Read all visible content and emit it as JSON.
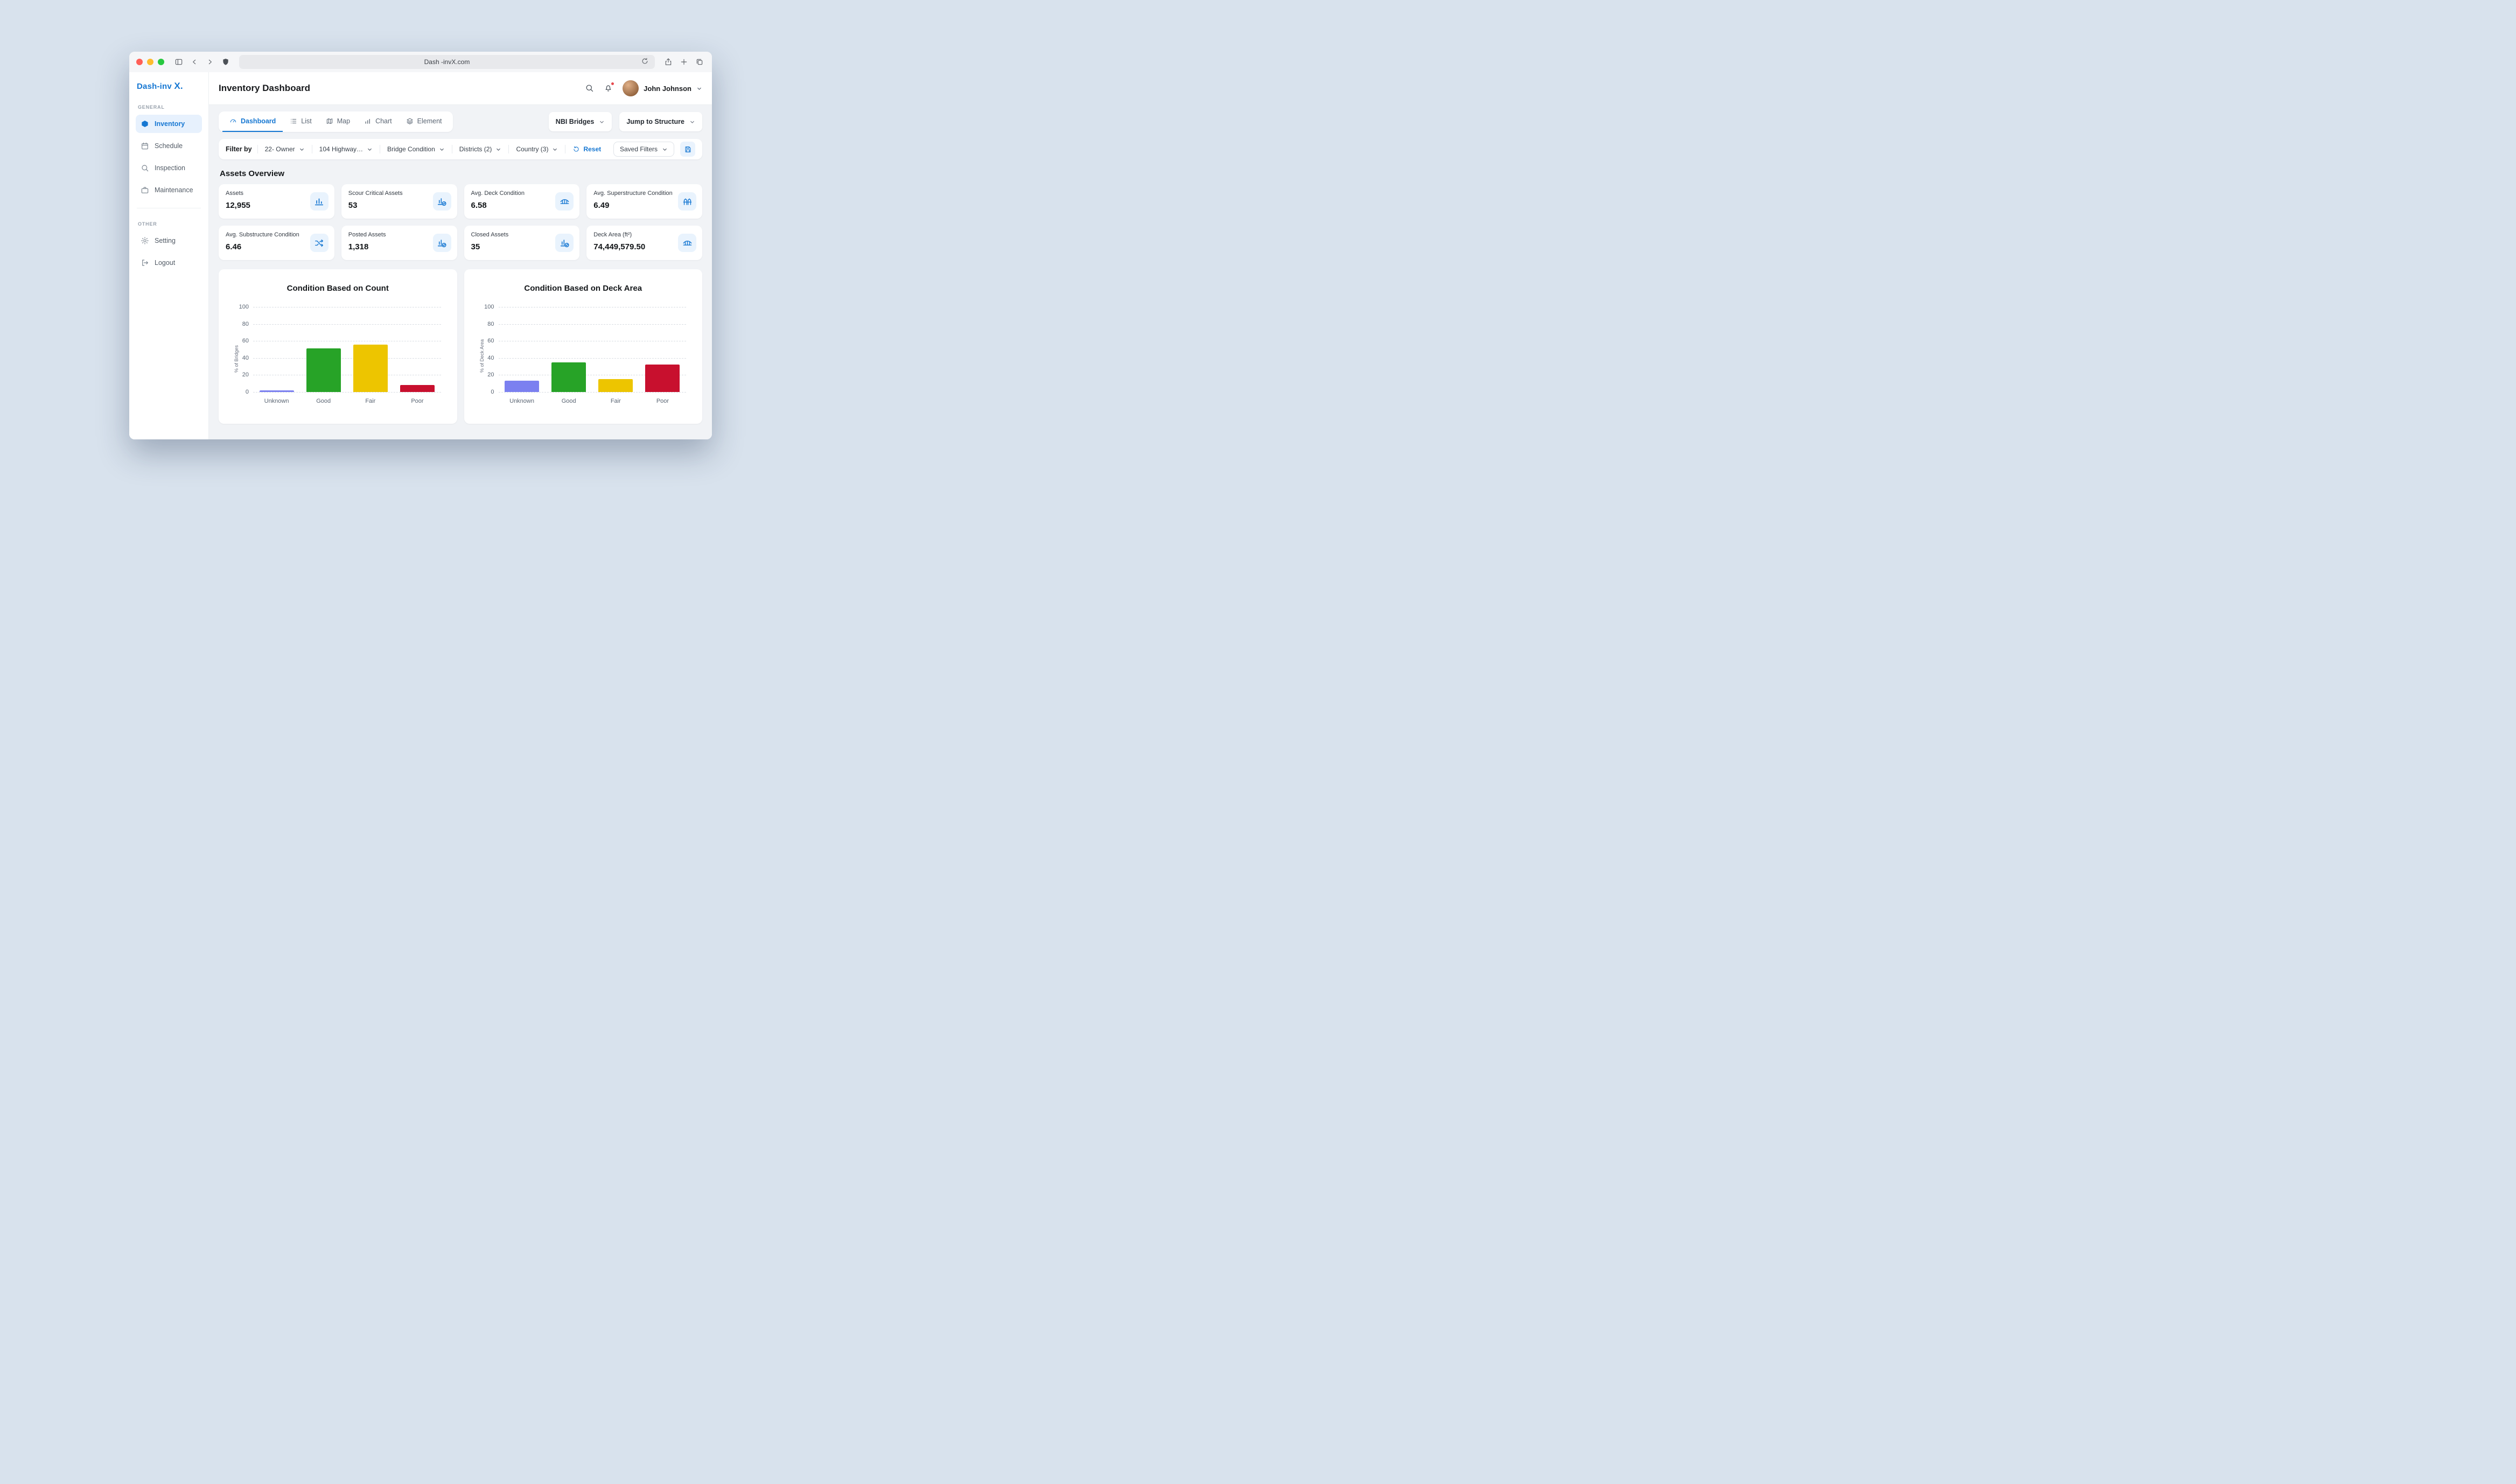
{
  "accent_color": "#1677d2",
  "browser": {
    "url": "Dash -invX.com"
  },
  "sidebar": {
    "logo_text": "Dash-inv",
    "logo_mark": "X.",
    "sections": [
      {
        "label": "GENERAL",
        "items": [
          {
            "label": "Inventory",
            "icon": "inventory-box-icon",
            "active": true
          },
          {
            "label": "Schedule",
            "icon": "calendar-icon",
            "active": false
          },
          {
            "label": "Inspection",
            "icon": "search-icon",
            "active": false
          },
          {
            "label": "Maintenance",
            "icon": "briefcase-icon",
            "active": false
          }
        ]
      },
      {
        "label": "OTHER",
        "items": [
          {
            "label": "Setting",
            "icon": "gear-icon",
            "active": false
          },
          {
            "label": "Logout",
            "icon": "logout-icon",
            "active": false
          }
        ]
      }
    ]
  },
  "header": {
    "title": "Inventory Dashboard",
    "user_name": "John Johnson"
  },
  "tabs": [
    {
      "label": "Dashboard",
      "icon": "gauge-icon",
      "active": true
    },
    {
      "label": "List",
      "icon": "list-icon",
      "active": false
    },
    {
      "label": "Map",
      "icon": "map-icon",
      "active": false
    },
    {
      "label": "Chart",
      "icon": "bar-chart-icon",
      "active": false
    },
    {
      "label": "Element",
      "icon": "layers-icon",
      "active": false
    }
  ],
  "toolbar": {
    "dataset": "NBI Bridges",
    "jump": "Jump to Structure"
  },
  "filters": {
    "label": "Filter by",
    "dropdowns": [
      {
        "label": "22- Owner"
      },
      {
        "label": "104 Highway…"
      },
      {
        "label": "Bridge Condition"
      },
      {
        "label": "Districts (2)"
      },
      {
        "label": "Country (3)"
      }
    ],
    "reset": "Reset",
    "saved": "Saved Filters"
  },
  "overview": {
    "title": "Assets Overview",
    "cards": [
      {
        "label": "Assets",
        "value": "12,955"
      },
      {
        "label": "Scour Critical Assets",
        "value": "53"
      },
      {
        "label": "Avg. Deck Condition",
        "value": "6.58"
      },
      {
        "label": "Avg. Superstructure Condition",
        "value": "6.49"
      },
      {
        "label": "Avg. Substructure Condition",
        "value": "6.46"
      },
      {
        "label": "Posted Assets",
        "value": "1,318"
      },
      {
        "label": "Closed Assets",
        "value": "35"
      },
      {
        "label": "Deck Area (ft²)",
        "value": "74,449,579.50"
      }
    ]
  },
  "chart_data": [
    {
      "type": "bar",
      "title": "Condition Based on Count",
      "ylabel": "% of Bridges",
      "categories": [
        "Unknown",
        "Good",
        "Fair",
        "Poor"
      ],
      "values": [
        2,
        51,
        56,
        8
      ],
      "colors": [
        "#7b80f0",
        "#27a327",
        "#edc500",
        "#c8102e"
      ],
      "ylim": [
        0,
        100
      ],
      "yticks": [
        0,
        20,
        40,
        60,
        80,
        100
      ],
      "grid": "dashed-horizontal",
      "legend": "none"
    },
    {
      "type": "bar",
      "title": "Condition Based on Deck Area",
      "ylabel": "% of Deck Area",
      "categories": [
        "Unknown",
        "Good",
        "Fair",
        "Poor"
      ],
      "values": [
        13,
        35,
        15,
        32
      ],
      "colors": [
        "#7b80f0",
        "#27a327",
        "#edc500",
        "#c8102e"
      ],
      "ylim": [
        0,
        100
      ],
      "yticks": [
        0,
        20,
        40,
        60,
        80,
        100
      ],
      "grid": "dashed-horizontal",
      "legend": "none"
    }
  ]
}
